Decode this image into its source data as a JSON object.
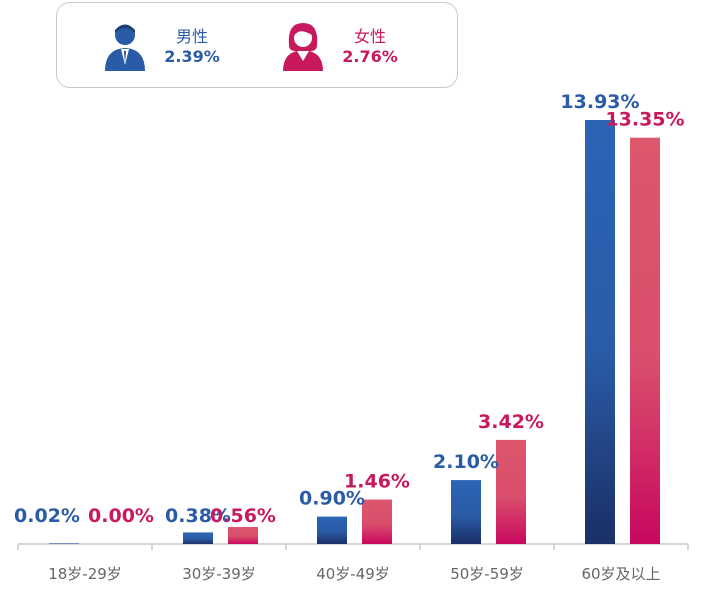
{
  "legend": {
    "male": {
      "label": "男性",
      "value": "2.39%",
      "color": "#2a5ba6",
      "icon": "male-avatar-icon"
    },
    "female": {
      "label": "女性",
      "value": "2.76%",
      "color": "#c8195f",
      "icon": "female-avatar-icon"
    }
  },
  "chart_data": {
    "type": "bar",
    "categories": [
      "18岁-29岁",
      "30岁-39岁",
      "40岁-49岁",
      "50岁-59岁",
      "60岁及以上"
    ],
    "series": [
      {
        "name": "男性",
        "values": [
          0.02,
          0.38,
          0.9,
          2.1,
          13.93
        ],
        "labels": [
          "0.02%",
          "0.38%",
          "0.90%",
          "2.10%",
          "13.93%"
        ],
        "color": "#2a5ba6"
      },
      {
        "name": "女性",
        "values": [
          0.0,
          0.56,
          1.46,
          3.42,
          13.35
        ],
        "labels": [
          "0.00%",
          "0.56%",
          "1.46%",
          "3.42%",
          "13.35%"
        ],
        "color": "#d9536e"
      }
    ],
    "label_colors": [
      "#2a5ba6",
      "#c8195f"
    ],
    "ylim": [
      0,
      13.93
    ],
    "grid": false,
    "legend_position": "top-left"
  }
}
